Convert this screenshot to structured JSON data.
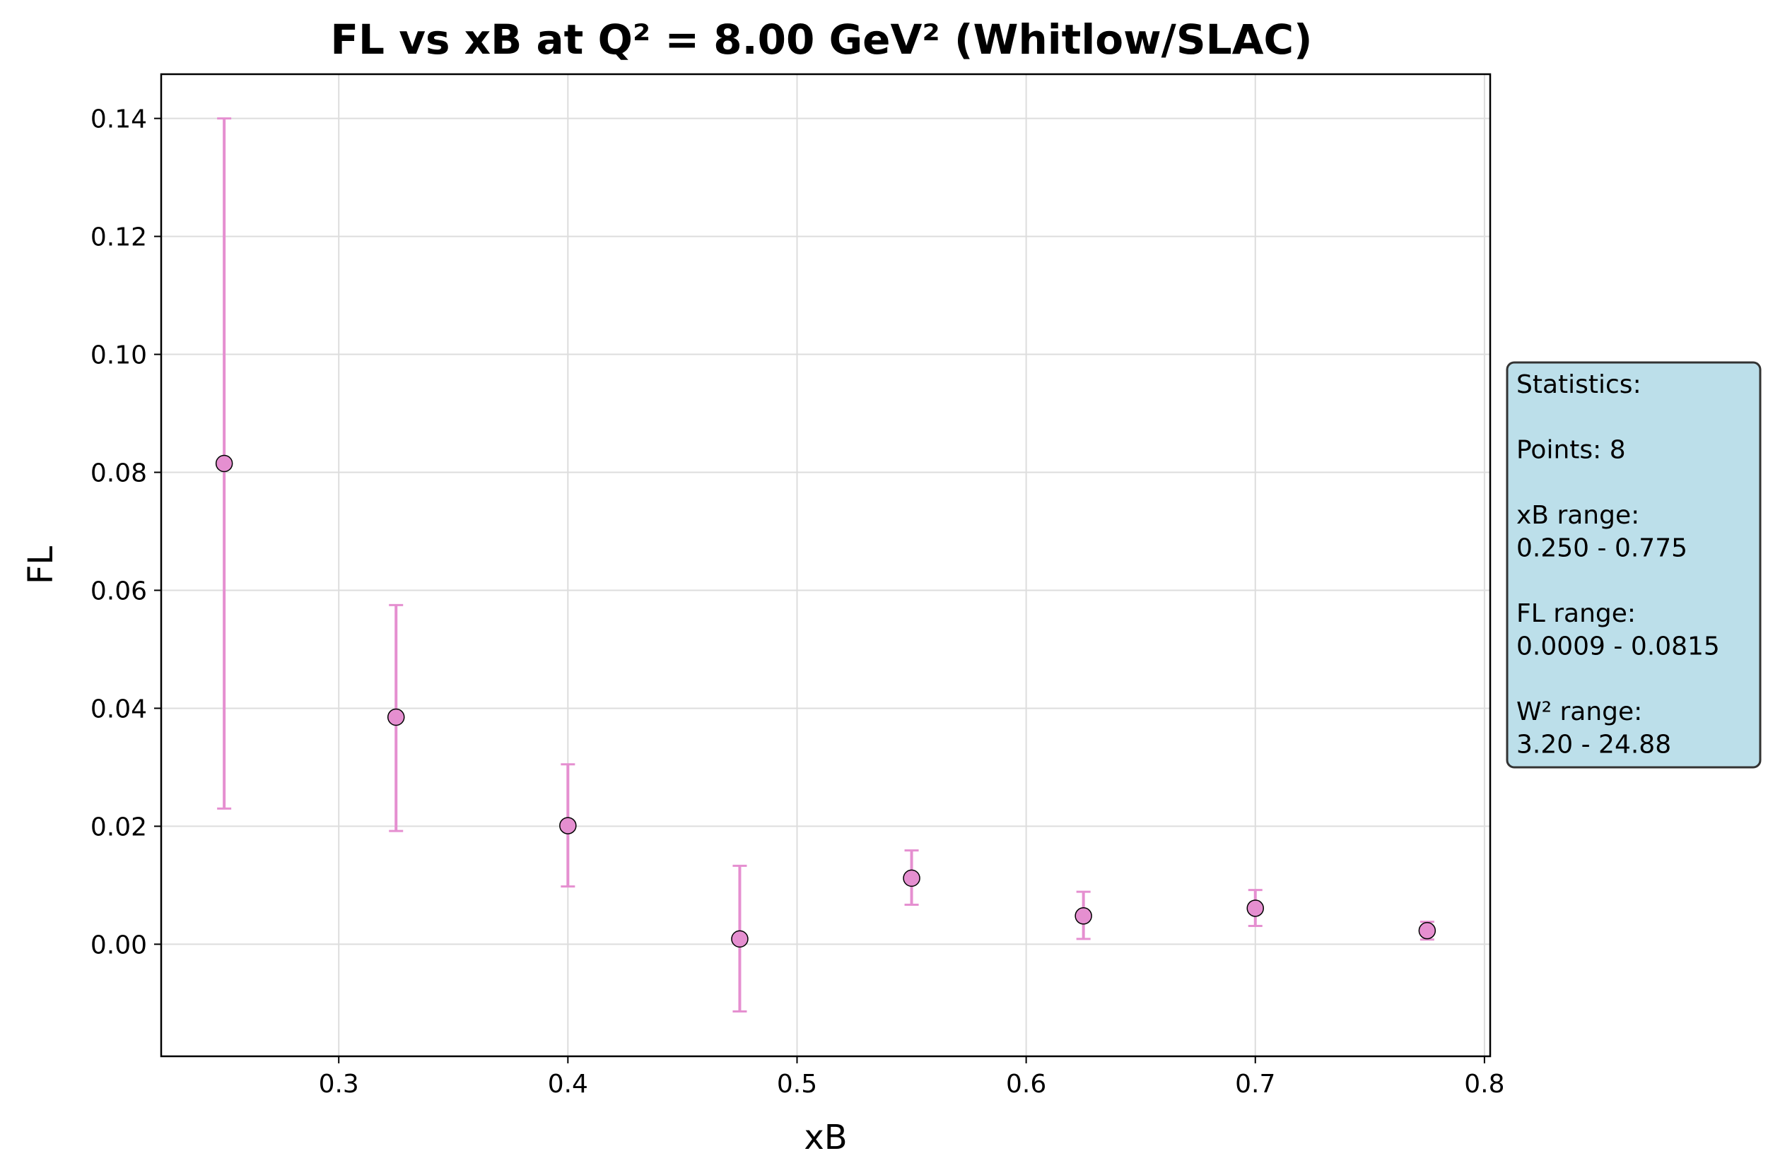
{
  "chart_data": {
    "type": "scatter",
    "title": "FL vs xB at Q² = 8.00 GeV² (Whitlow/SLAC)",
    "xlabel": "xB",
    "ylabel": "FL",
    "xlim": [
      0.2225,
      0.8025
    ],
    "ylim": [
      -0.019,
      0.1475
    ],
    "x_ticks": [
      0.3,
      0.4,
      0.5,
      0.6,
      0.7,
      0.8
    ],
    "x_tick_labels": [
      "0.3",
      "0.4",
      "0.5",
      "0.6",
      "0.7",
      "0.8"
    ],
    "y_ticks": [
      0.0,
      0.02,
      0.04,
      0.06,
      0.08,
      0.1,
      0.12,
      0.14
    ],
    "y_tick_labels": [
      "0.00",
      "0.02",
      "0.04",
      "0.06",
      "0.08",
      "0.10",
      "0.12",
      "0.14"
    ],
    "grid": true,
    "legend": "none",
    "marker_color": "#e58fd0",
    "errorbar_color": "#e58fd0",
    "marker_edge_color": "#000000",
    "series": [
      {
        "points": [
          {
            "x": 0.25,
            "y": 0.0815,
            "yerr_low": 0.0585,
            "yerr_high": 0.0585
          },
          {
            "x": 0.325,
            "y": 0.0385,
            "yerr_low": 0.0193,
            "yerr_high": 0.019
          },
          {
            "x": 0.4,
            "y": 0.0201,
            "yerr_low": 0.0103,
            "yerr_high": 0.0104
          },
          {
            "x": 0.475,
            "y": 0.0009,
            "yerr_low": 0.0123,
            "yerr_high": 0.0124
          },
          {
            "x": 0.55,
            "y": 0.0112,
            "yerr_low": 0.0045,
            "yerr_high": 0.0047
          },
          {
            "x": 0.625,
            "y": 0.0048,
            "yerr_low": 0.0039,
            "yerr_high": 0.0041
          },
          {
            "x": 0.7,
            "y": 0.0061,
            "yerr_low": 0.003,
            "yerr_high": 0.0031
          },
          {
            "x": 0.775,
            "y": 0.0023,
            "yerr_low": 0.0015,
            "yerr_high": 0.0015
          }
        ]
      }
    ],
    "annotation": {
      "placement": "right-center",
      "background": "#bcdfea",
      "lines": [
        "Statistics:",
        "",
        "Points: 8",
        "",
        "xB range:",
        "0.250 - 0.775",
        "",
        "FL range:",
        "0.0009 - 0.0815",
        "",
        "W² range:",
        "3.20 - 24.88"
      ]
    }
  }
}
